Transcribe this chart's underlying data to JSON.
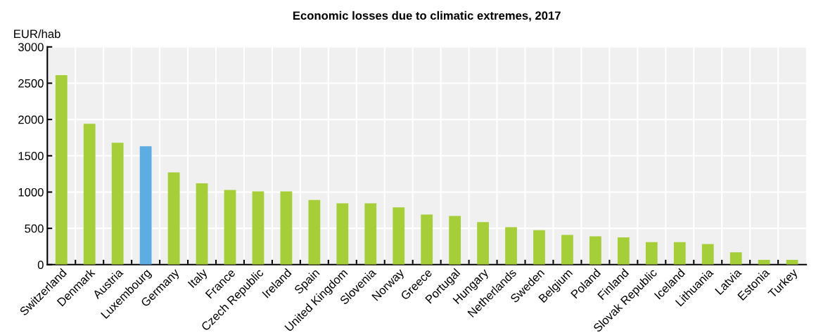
{
  "chart_data": {
    "type": "bar",
    "title": "Economic losses due to climatic extremes, 2017",
    "ylabel": "EUR/hab",
    "categories": [
      "Switzerland",
      "Denmark",
      "Austria",
      "Luxembourg",
      "Germany",
      "Italy",
      "France",
      "Czech Republic",
      "Ireland",
      "Spain",
      "United Kingdom",
      "Slovenia",
      "Norway",
      "Greece",
      "Portugal",
      "Hungary",
      "Netherlands",
      "Sweden",
      "Belgium",
      "Poland",
      "Finland",
      "Slovak Republic",
      "Iceland",
      "Lithuania",
      "Latvia",
      "Estonia",
      "Turkey"
    ],
    "values": [
      2610,
      1940,
      1680,
      1630,
      1270,
      1120,
      1030,
      1010,
      1010,
      890,
      845,
      845,
      790,
      690,
      670,
      585,
      515,
      475,
      410,
      390,
      375,
      310,
      310,
      285,
      170,
      65,
      65
    ],
    "colors": [
      "#a6ce39",
      "#a6ce39",
      "#a6ce39",
      "#5dade2",
      "#a6ce39",
      "#a6ce39",
      "#a6ce39",
      "#a6ce39",
      "#a6ce39",
      "#a6ce39",
      "#a6ce39",
      "#a6ce39",
      "#a6ce39",
      "#a6ce39",
      "#a6ce39",
      "#a6ce39",
      "#a6ce39",
      "#a6ce39",
      "#a6ce39",
      "#a6ce39",
      "#a6ce39",
      "#a6ce39",
      "#a6ce39",
      "#a6ce39",
      "#a6ce39",
      "#a6ce39",
      "#a6ce39"
    ],
    "ylim": [
      0,
      3000
    ],
    "yticks": [
      0,
      500,
      1000,
      1500,
      2000,
      2500,
      3000
    ],
    "grid": true
  }
}
